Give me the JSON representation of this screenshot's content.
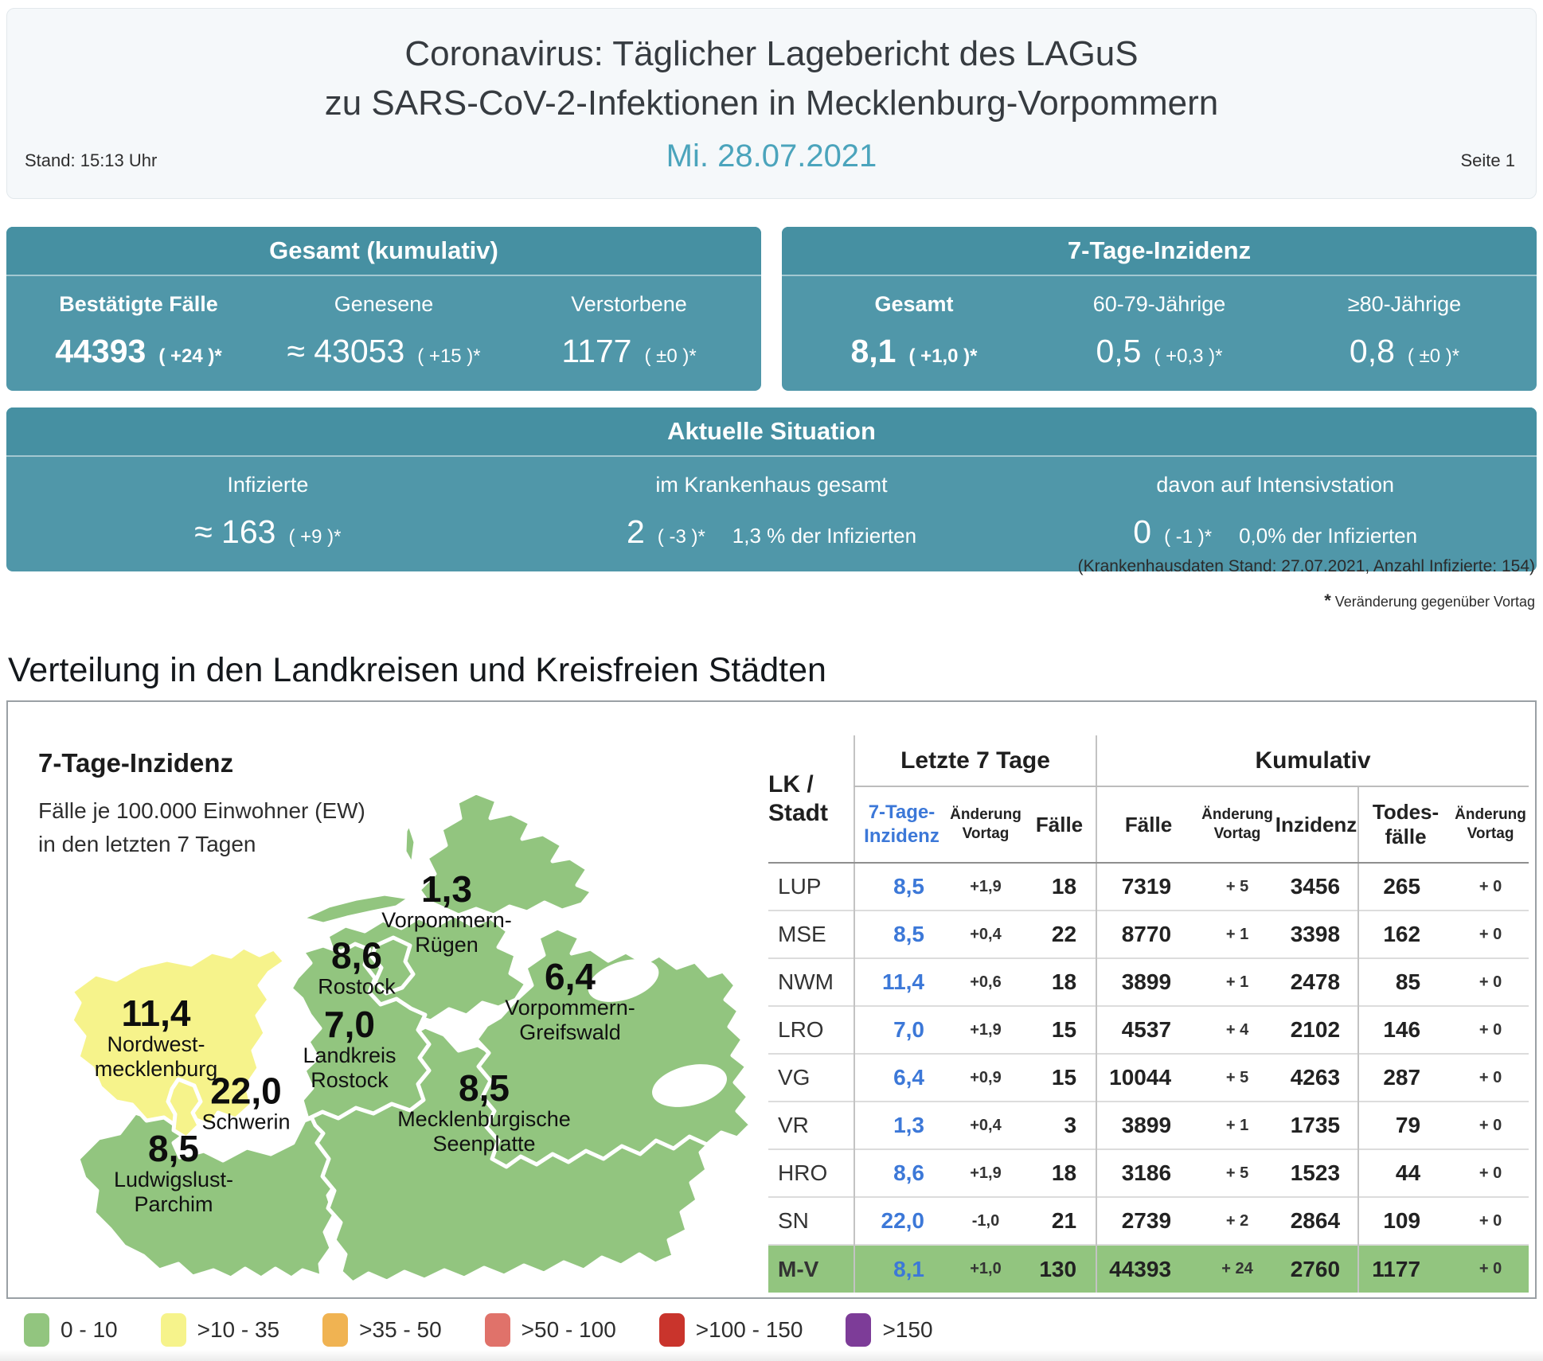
{
  "header": {
    "title_line1": "Coronavirus: Täglicher Lagebericht des LAGuS",
    "title_line2": "zu SARS-CoV-2-Infektionen in Mecklenburg-Vorpommern",
    "stand": "Stand: 15:13 Uhr",
    "date": "Mi. 28.07.2021",
    "page": "Seite 1"
  },
  "gesamt_card": {
    "title": "Gesamt (kumulativ)",
    "stats": [
      {
        "label": "Bestätigte Fälle",
        "value": "44393",
        "delta": "( +24 )*"
      },
      {
        "label": "Genesene",
        "value": "≈ 43053",
        "delta": "( +15 )*"
      },
      {
        "label": "Verstorbene",
        "value": "1177",
        "delta": "( ±0 )*"
      }
    ]
  },
  "inzidenz_card": {
    "title": "7-Tage-Inzidenz",
    "stats": [
      {
        "label": "Gesamt",
        "value": "8,1",
        "delta": "( +1,0 )*"
      },
      {
        "label": "60-79-Jährige",
        "value": "0,5",
        "delta": "( +0,3 )*"
      },
      {
        "label": "≥80-Jährige",
        "value": "0,8",
        "delta": "( ±0 )*"
      }
    ]
  },
  "situation_card": {
    "title": "Aktuelle Situation",
    "stats": [
      {
        "label": "Infizierte",
        "value": "≈ 163",
        "delta": "( +9 )*",
        "note": ""
      },
      {
        "label": "im Krankenhaus gesamt",
        "value": "2",
        "delta": "( -3 )*",
        "note": "1,3 % der Infizierten"
      },
      {
        "label": "davon auf Intensivstation",
        "value": "0",
        "delta": "( -1 )*",
        "note": "0,0% der Infizierten"
      }
    ]
  },
  "footnotes": {
    "hospital": "(Krankenhausdaten Stand: 27.07.2021, Anzahl Infizierte: 154)",
    "star": "*",
    "change": "Veränderung gegenüber Vortag"
  },
  "section_title": "Verteilung in den Landkreisen und Kreisfreien Städten",
  "map": {
    "title": "7-Tage-Inzidenz",
    "subtitle_line1": "Fälle je 100.000 Einwohner (EW)",
    "subtitle_line2": "in den letzten 7 Tagen",
    "colors": {
      "green": "#92c57f",
      "yellow": "#f6f38b"
    },
    "labels": [
      {
        "value": "1,3",
        "name": "Vorpommern-\nRügen"
      },
      {
        "value": "8,6",
        "name": "Rostock"
      },
      {
        "value": "7,0",
        "name": "Landkreis\nRostock"
      },
      {
        "value": "6,4",
        "name": "Vorpommern-\nGreifswald"
      },
      {
        "value": "11,4",
        "name": "Nordwest-\nmecklenburg"
      },
      {
        "value": "22,0",
        "name": "Schwerin"
      },
      {
        "value": "8,5",
        "name": "Mecklenburgische\nSeenplatte"
      },
      {
        "value": "8,5",
        "name": "Ludwigslust-\nParchim"
      }
    ]
  },
  "table": {
    "group_headers": {
      "region": "LK /\nStadt",
      "last7": "Letzte 7 Tage",
      "cumulative": "Kumulativ"
    },
    "col_headers": {
      "inz7": "7-Tage-\nInzidenz",
      "chg7": "Änderung\nVortag",
      "cases7": "Fälle",
      "cases": "Fälle",
      "chg": "Änderung\nVortag",
      "incidence": "Inzidenz",
      "deaths": "Todes-\nfälle",
      "chg_deaths": "Änderung\nVortag"
    },
    "rows": [
      {
        "region": "LUP",
        "inz7": "8,5",
        "chg7": "+1,9",
        "cases7": "18",
        "cases": "7319",
        "chg": "+ 5",
        "incidence": "3456",
        "deaths": "265",
        "chg_deaths": "+ 0",
        "total": false
      },
      {
        "region": "MSE",
        "inz7": "8,5",
        "chg7": "+0,4",
        "cases7": "22",
        "cases": "8770",
        "chg": "+ 1",
        "incidence": "3398",
        "deaths": "162",
        "chg_deaths": "+ 0",
        "total": false
      },
      {
        "region": "NWM",
        "inz7": "11,4",
        "chg7": "+0,6",
        "cases7": "18",
        "cases": "3899",
        "chg": "+ 1",
        "incidence": "2478",
        "deaths": "85",
        "chg_deaths": "+ 0",
        "total": false
      },
      {
        "region": "LRO",
        "inz7": "7,0",
        "chg7": "+1,9",
        "cases7": "15",
        "cases": "4537",
        "chg": "+ 4",
        "incidence": "2102",
        "deaths": "146",
        "chg_deaths": "+ 0",
        "total": false
      },
      {
        "region": "VG",
        "inz7": "6,4",
        "chg7": "+0,9",
        "cases7": "15",
        "cases": "10044",
        "chg": "+ 5",
        "incidence": "4263",
        "deaths": "287",
        "chg_deaths": "+ 0",
        "total": false
      },
      {
        "region": "VR",
        "inz7": "1,3",
        "chg7": "+0,4",
        "cases7": "3",
        "cases": "3899",
        "chg": "+ 1",
        "incidence": "1735",
        "deaths": "79",
        "chg_deaths": "+ 0",
        "total": false
      },
      {
        "region": "HRO",
        "inz7": "8,6",
        "chg7": "+1,9",
        "cases7": "18",
        "cases": "3186",
        "chg": "+ 5",
        "incidence": "1523",
        "deaths": "44",
        "chg_deaths": "+ 0",
        "total": false
      },
      {
        "region": "SN",
        "inz7": "22,0",
        "chg7": "-1,0",
        "cases7": "21",
        "cases": "2739",
        "chg": "+ 2",
        "incidence": "2864",
        "deaths": "109",
        "chg_deaths": "+ 0",
        "total": false
      },
      {
        "region": "M-V",
        "inz7": "8,1",
        "chg7": "+1,0",
        "cases7": "130",
        "cases": "44393",
        "chg": "+ 24",
        "incidence": "2760",
        "deaths": "1177",
        "chg_deaths": "+ 0",
        "total": true
      }
    ]
  },
  "legend": {
    "items": [
      {
        "label": "0 - 10",
        "color": "#92c57f"
      },
      {
        "label": ">10 - 35",
        "color": "#f6f38b"
      },
      {
        "label": ">35 - 50",
        "color": "#f0b352"
      },
      {
        "label": ">50 - 100",
        "color": "#e0726a"
      },
      {
        "label": ">100 - 150",
        "color": "#c9342c"
      },
      {
        "label": ">150",
        "color": "#7d3c98"
      }
    ]
  }
}
